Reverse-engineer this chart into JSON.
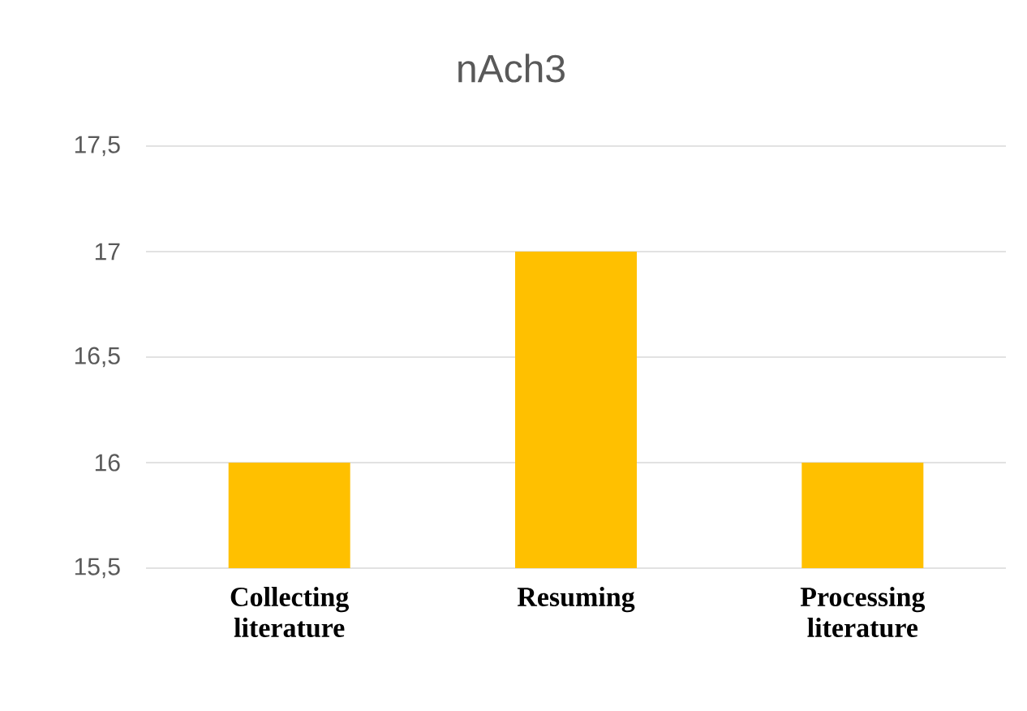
{
  "chart_data": {
    "type": "bar",
    "title": "nAch3",
    "categories": [
      "Collecting literature",
      "Resuming",
      "Processing literature"
    ],
    "values": [
      16,
      17,
      16
    ],
    "color": "#ffc000",
    "ylim": [
      15.5,
      17.5
    ],
    "yticks": [
      {
        "value": 15.5,
        "label": "15,5"
      },
      16,
      {
        "value": 16.5,
        "label": "16,5"
      },
      17,
      {
        "value": 17.5,
        "label": "17,5"
      }
    ],
    "grid": "y"
  }
}
